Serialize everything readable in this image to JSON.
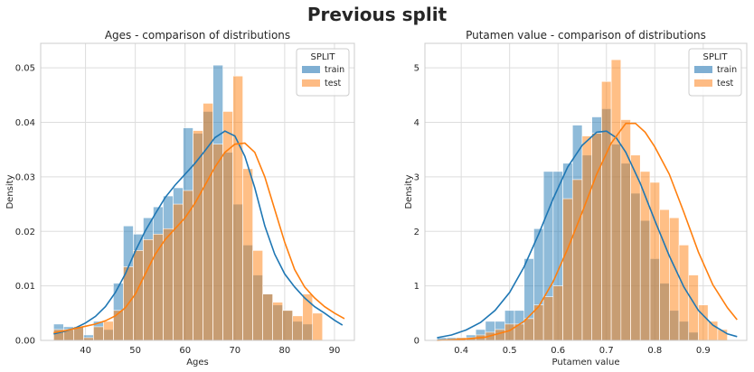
{
  "figure": {
    "title": "Previous split"
  },
  "colors": {
    "train": "#1f77b4",
    "test": "#ff7f0e",
    "train_fill": "#7fafd3",
    "test_fill": "#fdbb84",
    "overlap_fill": "#8a9a96",
    "grid": "#dddddd"
  },
  "chart_data": [
    {
      "type": "bar",
      "title": "Ages - comparison of distributions",
      "xlabel": "Ages",
      "ylabel": "Density",
      "xlim": [
        31,
        94
      ],
      "ylim": [
        0,
        0.0545
      ],
      "xticks": [
        40,
        50,
        60,
        70,
        80,
        90
      ],
      "yticks": [
        0.0,
        0.01,
        0.02,
        0.03,
        0.04,
        0.05
      ],
      "ytick_decimals": 2,
      "grid": true,
      "legend": {
        "title": "SPLIT",
        "placement": "top-right",
        "entries": [
          "train",
          "test"
        ]
      },
      "bins": {
        "start": 33.6,
        "width": 2.0
      },
      "series": [
        {
          "name": "train",
          "values": [
            0.003,
            0.0025,
            0.0025,
            0.001,
            0.0035,
            0.002,
            0.0105,
            0.021,
            0.0195,
            0.0225,
            0.0245,
            0.0265,
            0.028,
            0.039,
            0.038,
            0.042,
            0.0505,
            0.0345,
            0.025,
            0.0175,
            0.012,
            0.0085,
            0.0065,
            0.0055,
            0.0035,
            0.003
          ],
          "kde": [
            [
              33.6,
              0.0012
            ],
            [
              36,
              0.0017
            ],
            [
              38,
              0.0023
            ],
            [
              40,
              0.0032
            ],
            [
              42,
              0.0044
            ],
            [
              44,
              0.0062
            ],
            [
              46,
              0.0088
            ],
            [
              48,
              0.0122
            ],
            [
              50,
              0.0164
            ],
            [
              52,
              0.0201
            ],
            [
              54,
              0.0232
            ],
            [
              56,
              0.0262
            ],
            [
              58,
              0.0285
            ],
            [
              60,
              0.0305
            ],
            [
              62,
              0.0325
            ],
            [
              64,
              0.0348
            ],
            [
              66,
              0.0372
            ],
            [
              68,
              0.0384
            ],
            [
              70,
              0.0375
            ],
            [
              72,
              0.0338
            ],
            [
              74,
              0.028
            ],
            [
              76,
              0.021
            ],
            [
              78,
              0.0158
            ],
            [
              80,
              0.0122
            ],
            [
              82,
              0.0098
            ],
            [
              84,
              0.0078
            ],
            [
              86,
              0.0062
            ],
            [
              88,
              0.005
            ],
            [
              90,
              0.0037
            ],
            [
              91.6,
              0.0028
            ]
          ]
        },
        {
          "name": "test",
          "values": [
            0.002,
            0.002,
            0.0025,
            0.0005,
            0.0025,
            0.0035,
            0.0055,
            0.0135,
            0.0165,
            0.0185,
            0.0195,
            0.0205,
            0.025,
            0.0275,
            0.0385,
            0.0435,
            0.036,
            0.042,
            0.0485,
            0.0315,
            0.0165,
            0.0085,
            0.007,
            0.0055,
            0.0045,
            0.0085,
            0.005
          ],
          "kde": [
            [
              33.6,
              0.0014
            ],
            [
              36,
              0.0018
            ],
            [
              38,
              0.0022
            ],
            [
              40,
              0.0026
            ],
            [
              42,
              0.003
            ],
            [
              44,
              0.0036
            ],
            [
              46,
              0.0045
            ],
            [
              48,
              0.006
            ],
            [
              50,
              0.0085
            ],
            [
              52,
              0.0122
            ],
            [
              54,
              0.0158
            ],
            [
              56,
              0.0185
            ],
            [
              58,
              0.0205
            ],
            [
              60,
              0.0225
            ],
            [
              62,
              0.0252
            ],
            [
              64,
              0.0285
            ],
            [
              66,
              0.0318
            ],
            [
              68,
              0.0345
            ],
            [
              70,
              0.036
            ],
            [
              72,
              0.0362
            ],
            [
              74,
              0.0345
            ],
            [
              76,
              0.03
            ],
            [
              78,
              0.024
            ],
            [
              80,
              0.018
            ],
            [
              82,
              0.013
            ],
            [
              84,
              0.0098
            ],
            [
              86,
              0.0078
            ],
            [
              88,
              0.0062
            ],
            [
              90,
              0.005
            ],
            [
              92,
              0.004
            ]
          ]
        }
      ]
    },
    {
      "type": "bar",
      "title": "Putamen value - comparison of distributions",
      "xlabel": "Putamen value",
      "ylabel": "Density",
      "xlim": [
        0.325,
        0.99
      ],
      "ylim": [
        0,
        5.45
      ],
      "xticks": [
        0.4,
        0.5,
        0.6,
        0.7,
        0.8,
        0.9
      ],
      "yticks": [
        0,
        1,
        2,
        3,
        4,
        5
      ],
      "ytick_decimals": 1,
      "grid": true,
      "legend": {
        "title": "SPLIT",
        "placement": "top-right",
        "entries": [
          "train",
          "test"
        ]
      },
      "bins": {
        "start": 0.35,
        "width": 0.02
      },
      "series": [
        {
          "name": "train",
          "values": [
            0.05,
            0.05,
            0.05,
            0.1,
            0.2,
            0.35,
            0.35,
            0.55,
            0.55,
            1.5,
            2.05,
            3.1,
            3.1,
            3.25,
            3.95,
            3.4,
            4.1,
            4.25,
            3.6,
            3.25,
            2.7,
            2.2,
            1.5,
            1.05,
            0.55,
            0.35,
            0.15
          ],
          "kde": [
            [
              0.35,
              0.05
            ],
            [
              0.38,
              0.1
            ],
            [
              0.41,
              0.19
            ],
            [
              0.44,
              0.33
            ],
            [
              0.47,
              0.55
            ],
            [
              0.5,
              0.88
            ],
            [
              0.53,
              1.35
            ],
            [
              0.56,
              1.95
            ],
            [
              0.59,
              2.6
            ],
            [
              0.62,
              3.18
            ],
            [
              0.65,
              3.58
            ],
            [
              0.68,
              3.82
            ],
            [
              0.7,
              3.84
            ],
            [
              0.72,
              3.72
            ],
            [
              0.74,
              3.45
            ],
            [
              0.77,
              2.88
            ],
            [
              0.8,
              2.2
            ],
            [
              0.83,
              1.55
            ],
            [
              0.86,
              0.98
            ],
            [
              0.89,
              0.55
            ],
            [
              0.92,
              0.28
            ],
            [
              0.95,
              0.12
            ],
            [
              0.97,
              0.07
            ]
          ]
        },
        {
          "name": "test",
          "values": [
            0.0,
            0.0,
            0.05,
            0.05,
            0.1,
            0.15,
            0.2,
            0.3,
            0.3,
            0.4,
            0.65,
            0.8,
            1.0,
            2.6,
            2.95,
            3.75,
            3.8,
            4.75,
            5.15,
            4.05,
            3.4,
            3.1,
            2.9,
            2.4,
            2.25,
            1.75,
            1.2,
            0.65,
            0.35,
            0.2
          ],
          "kde": [
            [
              0.35,
              0.0
            ],
            [
              0.4,
              0.02
            ],
            [
              0.45,
              0.06
            ],
            [
              0.5,
              0.18
            ],
            [
              0.53,
              0.35
            ],
            [
              0.56,
              0.62
            ],
            [
              0.59,
              1.08
            ],
            [
              0.62,
              1.68
            ],
            [
              0.65,
              2.35
            ],
            [
              0.68,
              3.05
            ],
            [
              0.71,
              3.62
            ],
            [
              0.74,
              3.98
            ],
            [
              0.76,
              3.98
            ],
            [
              0.78,
              3.82
            ],
            [
              0.8,
              3.55
            ],
            [
              0.83,
              3.05
            ],
            [
              0.86,
              2.35
            ],
            [
              0.89,
              1.62
            ],
            [
              0.92,
              1.02
            ],
            [
              0.95,
              0.6
            ],
            [
              0.97,
              0.38
            ]
          ]
        }
      ]
    }
  ]
}
